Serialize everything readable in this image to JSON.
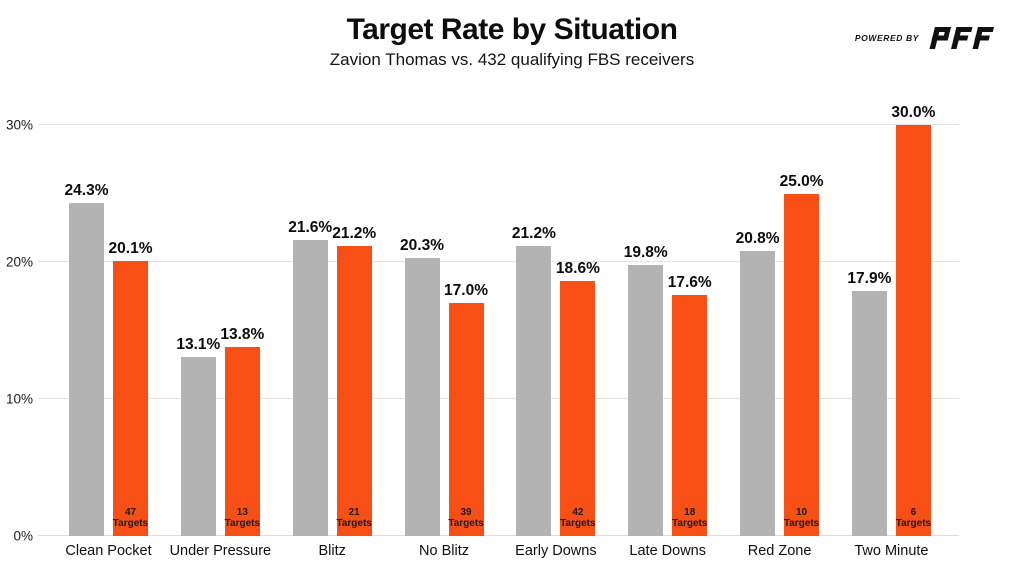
{
  "brand": {
    "powered_by": "POWERED BY",
    "name": "PFF",
    "color": "#111111"
  },
  "chart_data": {
    "type": "bar",
    "title": "Target Rate by Situation",
    "subtitle": "Zavion Thomas vs. 432 qualifying FBS receivers",
    "categories": [
      "Clean Pocket",
      "Under Pressure",
      "Blitz",
      "No Blitz",
      "Early Downs",
      "Late Downs",
      "Red Zone",
      "Two Minute"
    ],
    "series": [
      {
        "key": "gray",
        "color": "#b3b3b3",
        "values": [
          24.3,
          13.1,
          21.6,
          20.3,
          21.2,
          19.8,
          20.8,
          17.9
        ]
      },
      {
        "key": "orange",
        "color": "#f74f16",
        "values": [
          20.1,
          13.8,
          21.2,
          17.0,
          18.6,
          17.6,
          25.0,
          30.0
        ],
        "bar_annotation_counts": [
          47,
          13,
          21,
          39,
          42,
          18,
          10,
          6
        ],
        "bar_annotation_word": "Targets"
      }
    ],
    "value_suffix": "%",
    "value_decimals": 1,
    "y_axis": {
      "max": 30,
      "ticks": [
        {
          "label": "0%",
          "value": 0
        },
        {
          "label": "10%",
          "value": 10
        },
        {
          "label": "20%",
          "value": 20
        },
        {
          "label": "30%",
          "value": 30
        }
      ]
    },
    "grid": true,
    "legend": null
  }
}
